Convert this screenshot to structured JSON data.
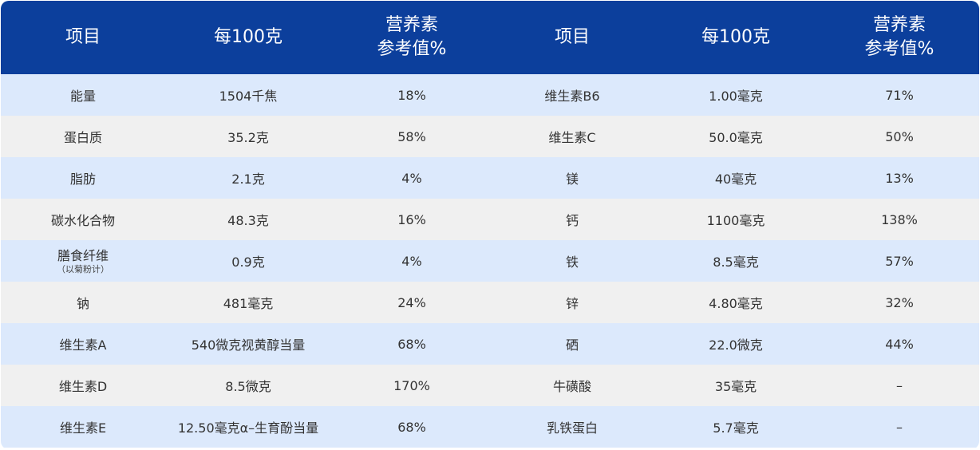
{
  "header": {
    "col1": "项目",
    "col2": "每100克",
    "col3_line1": "营养素",
    "col3_line2": "参考值%",
    "col4": "项目",
    "col5": "每100克",
    "col6_line1": "营养素",
    "col6_line2": "参考值%"
  },
  "rows": [
    {
      "item": "能量",
      "item_sub": "",
      "per100": "1504千焦",
      "nrv": "18%",
      "item2": "维生素B6",
      "per100_2": "1.00毫克",
      "nrv2": "71%"
    },
    {
      "item": "蛋白质",
      "item_sub": "",
      "per100": "35.2克",
      "nrv": "58%",
      "item2": "维生素C",
      "per100_2": "50.0毫克",
      "nrv2": "50%"
    },
    {
      "item": "脂肪",
      "item_sub": "",
      "per100": "2.1克",
      "nrv": "4%",
      "item2": "镁",
      "per100_2": "40毫克",
      "nrv2": "13%"
    },
    {
      "item": "碳水化合物",
      "item_sub": "",
      "per100": "48.3克",
      "nrv": "16%",
      "item2": "钙",
      "per100_2": "1100毫克",
      "nrv2": "138%"
    },
    {
      "item": "膳食纤维",
      "item_sub": "（以菊粉计）",
      "per100": "0.9克",
      "nrv": "4%",
      "item2": "铁",
      "per100_2": "8.5毫克",
      "nrv2": "57%"
    },
    {
      "item": "钠",
      "item_sub": "",
      "per100": "481毫克",
      "nrv": "24%",
      "item2": "锌",
      "per100_2": "4.80毫克",
      "nrv2": "32%"
    },
    {
      "item": "维生素A",
      "item_sub": "",
      "per100": "540微克视黄醇当量",
      "nrv": "68%",
      "item2": "硒",
      "per100_2": "22.0微克",
      "nrv2": "44%"
    },
    {
      "item": "维生素D",
      "item_sub": "",
      "per100": "8.5微克",
      "nrv": "170%",
      "item2": "牛磺酸",
      "per100_2": "35毫克",
      "nrv2": "–"
    },
    {
      "item": "维生素E",
      "item_sub": "",
      "per100": "12.50毫克α–生育酚当量",
      "nrv": "68%",
      "item2": "乳铁蛋白",
      "per100_2": "5.7毫克",
      "nrv2": "–"
    }
  ],
  "colors": {
    "header_bg": "#0c3f9c",
    "row_odd_bg": "#dce9fc",
    "row_even_bg": "#f0f0f0"
  }
}
